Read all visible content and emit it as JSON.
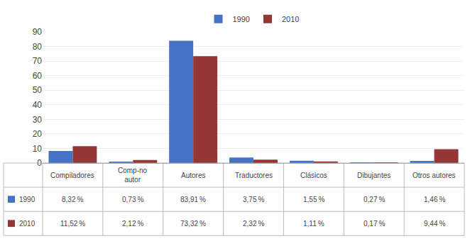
{
  "chart_data": {
    "type": "bar",
    "categories": [
      "Compiladores",
      "Comp-no\nautor",
      "Autores",
      "Traductores",
      "Clásicos",
      "Dibujantes",
      "Otros autores"
    ],
    "series": [
      {
        "name": "1990",
        "color": "#4472C4",
        "values": [
          8.32,
          0.73,
          83.91,
          3.75,
          1.55,
          0.27,
          1.46
        ],
        "value_labels": [
          "8,32 %",
          "0,73 %",
          "83,91 %",
          "3,75 %",
          "1,55 %",
          "0,27 %",
          "1,46 %"
        ]
      },
      {
        "name": "2010",
        "color": "#943634",
        "values": [
          11.52,
          2.12,
          73.32,
          2.32,
          1.11,
          0.17,
          9.44
        ],
        "value_labels": [
          "11,52 %",
          "2,12 %",
          "73,32 %",
          "2,32 %",
          "1,11 %",
          "0,17 %",
          "9,44 %"
        ]
      }
    ],
    "ylim": [
      0,
      90
    ],
    "yticks": [
      0,
      10,
      20,
      30,
      40,
      50,
      60,
      70,
      80,
      90
    ],
    "grid": true,
    "legend": "top",
    "tick_labels": "y"
  }
}
